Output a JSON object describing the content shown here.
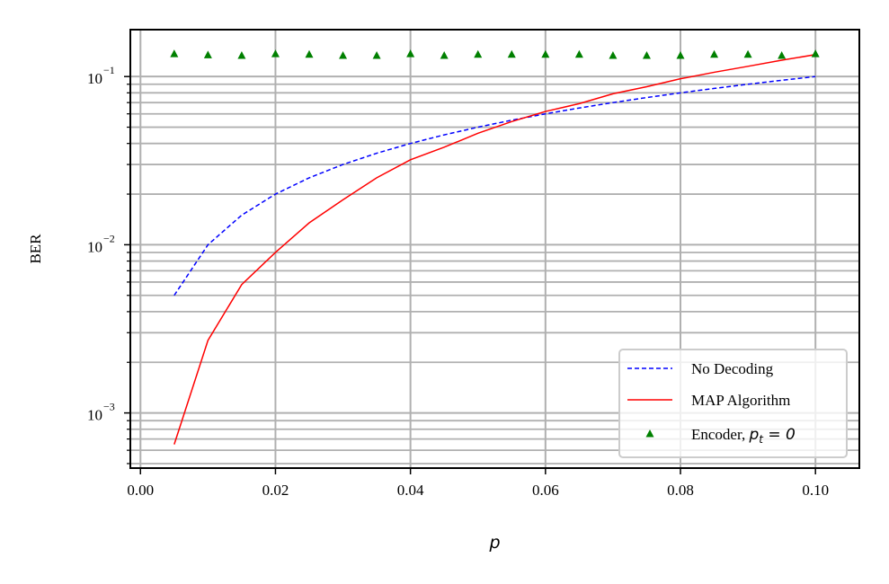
{
  "chart_data": {
    "type": "line",
    "xlabel": "p",
    "ylabel": "BER",
    "xlim": [
      -0.0015,
      0.1065
    ],
    "ylim": [
      0.00047,
      0.19
    ],
    "yscale": "log",
    "grid": true,
    "legend_position": "lower-right",
    "x_ticks": [
      0.0,
      0.02,
      0.04,
      0.06,
      0.08,
      0.1
    ],
    "x_tick_labels": [
      "0.00",
      "0.02",
      "0.04",
      "0.06",
      "0.08",
      "0.10"
    ],
    "y_ticks": [
      0.001,
      0.01,
      0.1
    ],
    "y_tick_labels": [
      {
        "base": "10",
        "exp": "−3"
      },
      {
        "base": "10",
        "exp": "−2"
      },
      {
        "base": "10",
        "exp": "−1"
      }
    ],
    "series": [
      {
        "name": "No Decoding",
        "style": "dashed",
        "color": "#0000ff",
        "x": [
          0.005,
          0.01,
          0.015,
          0.02,
          0.025,
          0.03,
          0.035,
          0.04,
          0.045,
          0.05,
          0.055,
          0.06,
          0.065,
          0.07,
          0.075,
          0.08,
          0.085,
          0.09,
          0.095,
          0.1
        ],
        "y": [
          0.005,
          0.01,
          0.015,
          0.02,
          0.025,
          0.03,
          0.035,
          0.04,
          0.045,
          0.05,
          0.055,
          0.06,
          0.065,
          0.07,
          0.075,
          0.08,
          0.085,
          0.09,
          0.095,
          0.1
        ]
      },
      {
        "name": "MAP Algorithm",
        "style": "solid",
        "color": "#ff0000",
        "x": [
          0.005,
          0.01,
          0.015,
          0.02,
          0.025,
          0.03,
          0.035,
          0.04,
          0.045,
          0.05,
          0.055,
          0.06,
          0.065,
          0.07,
          0.075,
          0.08,
          0.085,
          0.09,
          0.095,
          0.1
        ],
        "y": [
          0.00065,
          0.0027,
          0.0058,
          0.009,
          0.0135,
          0.0185,
          0.025,
          0.032,
          0.038,
          0.046,
          0.054,
          0.062,
          0.069,
          0.079,
          0.087,
          0.097,
          0.106,
          0.115,
          0.125,
          0.135
        ]
      },
      {
        "name": "Encoder, ",
        "name_math": "p",
        "name_math_sub": "t",
        "name_math_tail": " = 0",
        "style": "marker-triangle",
        "color": "#008000",
        "x": [
          0.005,
          0.01,
          0.015,
          0.02,
          0.025,
          0.03,
          0.035,
          0.04,
          0.045,
          0.05,
          0.055,
          0.06,
          0.065,
          0.07,
          0.075,
          0.08,
          0.085,
          0.09,
          0.095,
          0.1
        ],
        "y": [
          0.136,
          0.134,
          0.133,
          0.136,
          0.135,
          0.133,
          0.133,
          0.136,
          0.133,
          0.135,
          0.135,
          0.135,
          0.135,
          0.133,
          0.133,
          0.133,
          0.135,
          0.135,
          0.133,
          0.136
        ]
      }
    ]
  }
}
